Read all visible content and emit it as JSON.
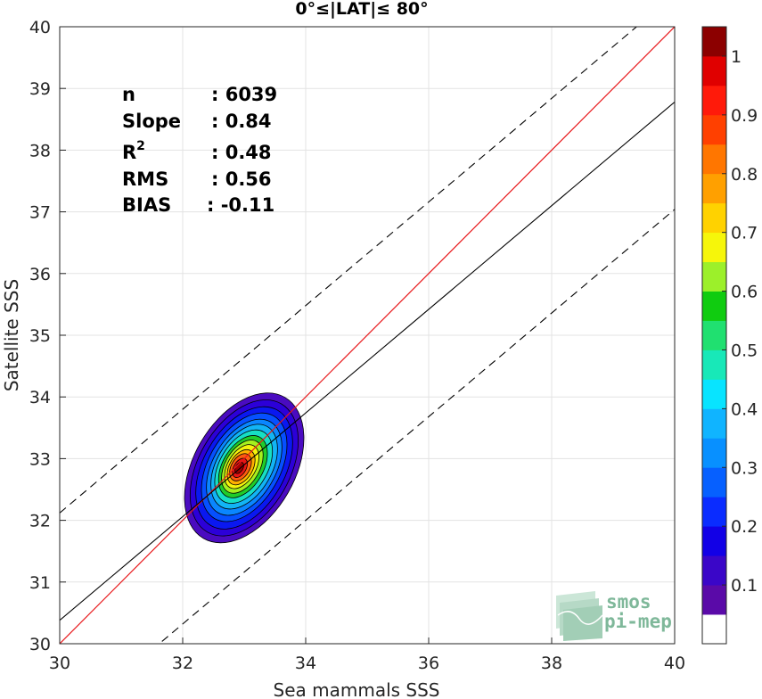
{
  "chart_data": {
    "type": "contour-scatter",
    "title": "0°≤|LAT|≤ 80°",
    "xlabel": "Sea mammals SSS",
    "ylabel": "Satellite SSS",
    "xlim": [
      30,
      40
    ],
    "ylim": [
      30,
      40
    ],
    "x_ticks": [
      30,
      32,
      34,
      36,
      38,
      40
    ],
    "y_ticks": [
      30,
      31,
      32,
      33,
      34,
      35,
      36,
      37,
      38,
      39,
      40
    ],
    "grid": true,
    "stats": [
      {
        "label": "n",
        "value": ": 6039"
      },
      {
        "label": "Slope",
        "value": ": 0.84"
      },
      {
        "label": "R",
        "sup": "2",
        "value": ": 0.48"
      },
      {
        "label": "RMS",
        "value": ": 0.56"
      },
      {
        "label": "BIAS",
        "value": ": -0.11"
      }
    ],
    "lines": {
      "identity": {
        "slope": 1,
        "intercept": 0,
        "color": "#e8191c"
      },
      "fit": {
        "slope": 0.84,
        "x0": 30,
        "y0": 30.38,
        "color": "#000000"
      },
      "band_offset": 1.74
    },
    "density_center": {
      "x": 32.9,
      "y": 32.85
    },
    "density_levels": [
      {
        "level": 0.05,
        "rx": 0.82,
        "ry": 1.32,
        "cx": 33.0,
        "cy": 32.85,
        "color": "#4a0bc0"
      },
      {
        "level": 0.1,
        "rx": 0.74,
        "ry": 1.2,
        "cx": 33.0,
        "cy": 32.85,
        "color": "#2c00d8"
      },
      {
        "level": 0.15,
        "rx": 0.66,
        "ry": 1.08,
        "cx": 33.0,
        "cy": 32.85,
        "color": "#0a18f0"
      },
      {
        "level": 0.2,
        "rx": 0.58,
        "ry": 0.96,
        "cx": 33.0,
        "cy": 32.86,
        "color": "#0650ff"
      },
      {
        "level": 0.25,
        "rx": 0.51,
        "ry": 0.85,
        "cx": 33.0,
        "cy": 32.86,
        "color": "#0a86ff"
      },
      {
        "level": 0.3,
        "rx": 0.45,
        "ry": 0.75,
        "cx": 33.0,
        "cy": 32.87,
        "color": "#12b4f5"
      },
      {
        "level": 0.4,
        "rx": 0.39,
        "ry": 0.65,
        "cx": 32.99,
        "cy": 32.87,
        "color": "#16dfc4"
      },
      {
        "level": 0.5,
        "rx": 0.33,
        "ry": 0.55,
        "cx": 32.98,
        "cy": 32.87,
        "color": "#20cc2a"
      },
      {
        "level": 0.55,
        "rx": 0.28,
        "ry": 0.47,
        "cx": 32.97,
        "cy": 32.87,
        "color": "#a6f01e"
      },
      {
        "level": 0.6,
        "rx": 0.23,
        "ry": 0.39,
        "cx": 32.96,
        "cy": 32.87,
        "color": "#f4f40c"
      },
      {
        "level": 0.7,
        "rx": 0.19,
        "ry": 0.31,
        "cx": 32.95,
        "cy": 32.86,
        "color": "#ffb000"
      },
      {
        "level": 0.8,
        "rx": 0.15,
        "ry": 0.24,
        "cx": 32.94,
        "cy": 32.86,
        "color": "#ff5a10"
      },
      {
        "level": 0.9,
        "rx": 0.1,
        "ry": 0.17,
        "cx": 32.93,
        "cy": 32.85,
        "color": "#e81414"
      },
      {
        "level": 1.0,
        "rx": 0.06,
        "ry": 0.1,
        "cx": 32.92,
        "cy": 32.85,
        "color": "#a00000"
      }
    ],
    "colorbar": {
      "ticks": [
        "0.1",
        "0.2",
        "0.3",
        "0.4",
        "0.5",
        "0.6",
        "0.7",
        "0.8",
        "0.9",
        "1"
      ],
      "tick_values": [
        0.1,
        0.2,
        0.3,
        0.4,
        0.5,
        0.6,
        0.7,
        0.8,
        0.9,
        1.0
      ],
      "colors": [
        "#ffffff",
        "#5a0aa8",
        "#3a06c8",
        "#1200e6",
        "#0a2cff",
        "#0660ff",
        "#0890ff",
        "#10b4ff",
        "#08e4ff",
        "#18e8b8",
        "#20e070",
        "#10cc10",
        "#9cf02a",
        "#f6f60a",
        "#ffd200",
        "#ffa000",
        "#ff7600",
        "#ff4000",
        "#ff1a0a",
        "#e00000",
        "#8c0000"
      ]
    }
  },
  "logo": {
    "line1": "smos",
    "line2": "pi-mep"
  }
}
